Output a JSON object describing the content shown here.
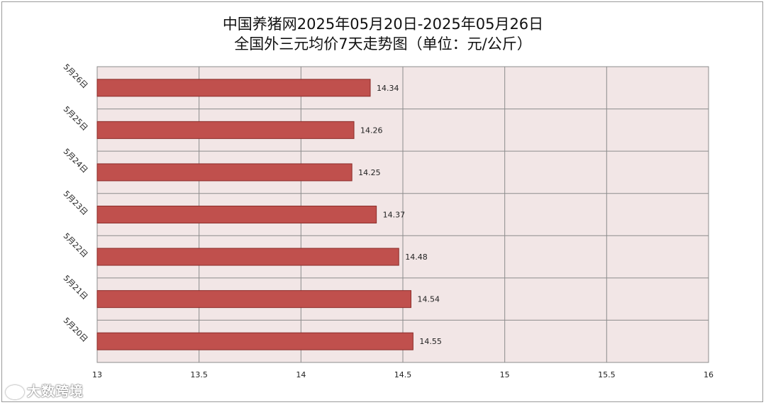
{
  "chart_data": {
    "type": "bar",
    "orientation": "horizontal",
    "title": "中国养猪网2025年05月20日-2025年05月26日",
    "subtitle": "全国外三元均价7天走势图（单位：元/公斤）",
    "categories": [
      "5月26日",
      "5月25日",
      "5月24日",
      "5月23日",
      "5月22日",
      "5月21日",
      "5月20日"
    ],
    "values": [
      14.34,
      14.26,
      14.25,
      14.37,
      14.48,
      14.54,
      14.55
    ],
    "x_ticks": [
      "13",
      "13.5",
      "14",
      "14.5",
      "15",
      "15.5",
      "16"
    ],
    "xlim": [
      13,
      16
    ],
    "data_labels": [
      "14.34",
      "14.26",
      "14.25",
      "14.37",
      "14.48",
      "14.54",
      "14.55"
    ],
    "grid": true,
    "bar_color": "#c0504d",
    "bar_edge_color": "#8b2d2a",
    "plot_background": "#f2e6e6"
  },
  "watermark": {
    "text": "大数跨境"
  }
}
